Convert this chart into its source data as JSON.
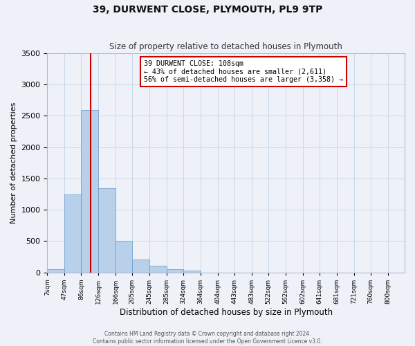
{
  "title": "39, DURWENT CLOSE, PLYMOUTH, PL9 9TP",
  "subtitle": "Size of property relative to detached houses in Plymouth",
  "xlabel": "Distribution of detached houses by size in Plymouth",
  "ylabel": "Number of detached properties",
  "bar_labels": [
    "7sqm",
    "47sqm",
    "86sqm",
    "126sqm",
    "166sqm",
    "205sqm",
    "245sqm",
    "285sqm",
    "324sqm",
    "364sqm",
    "404sqm",
    "443sqm",
    "483sqm",
    "522sqm",
    "562sqm",
    "602sqm",
    "641sqm",
    "681sqm",
    "721sqm",
    "760sqm",
    "800sqm"
  ],
  "bar_values": [
    50,
    1240,
    2590,
    1340,
    500,
    200,
    110,
    45,
    30,
    0,
    0,
    0,
    0,
    0,
    0,
    0,
    0,
    0,
    0,
    0,
    0
  ],
  "bar_color": "#b8d0ea",
  "bar_edge_color": "#6699cc",
  "red_line_x": 108,
  "annotation_title": "39 DURWENT CLOSE: 108sqm",
  "annotation_line1": "← 43% of detached houses are smaller (2,611)",
  "annotation_line2": "56% of semi-detached houses are larger (3,358) →",
  "annotation_box_color": "#ffffff",
  "annotation_box_edge": "#cc0000",
  "vline_color": "#cc0000",
  "footer1": "Contains HM Land Registry data © Crown copyright and database right 2024.",
  "footer2": "Contains public sector information licensed under the Open Government Licence v3.0.",
  "ylim": [
    0,
    3500
  ],
  "grid_color": "#c8d8e8",
  "background_color": "#eef2f8",
  "bin_edges": [
    7,
    47,
    86,
    126,
    166,
    205,
    245,
    285,
    324,
    364,
    404,
    443,
    483,
    522,
    562,
    602,
    641,
    681,
    721,
    760,
    800,
    839
  ]
}
